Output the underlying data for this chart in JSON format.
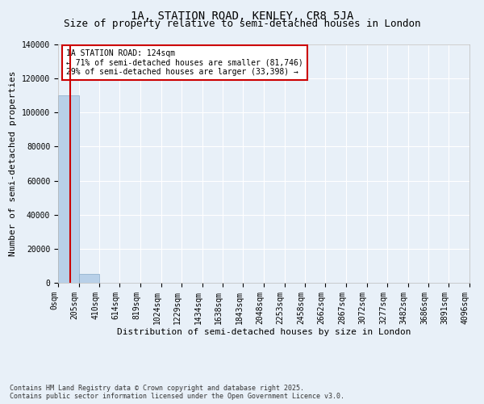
{
  "title": "1A, STATION ROAD, KENLEY, CR8 5JA",
  "subtitle": "Size of property relative to semi-detached houses in London",
  "xlabel": "Distribution of semi-detached houses by size in London",
  "ylabel": "Number of semi-detached properties",
  "property_size": 124,
  "property_label": "1A STATION ROAD: 124sqm",
  "pct_smaller": 71,
  "n_smaller": 81746,
  "pct_larger": 29,
  "n_larger": 33398,
  "bin_edges": [
    0,
    205,
    410,
    614,
    819,
    1024,
    1229,
    1434,
    1638,
    1843,
    2048,
    2253,
    2458,
    2662,
    2867,
    3072,
    3277,
    3482,
    3686,
    3891,
    4096
  ],
  "bin_labels": [
    "0sqm",
    "205sqm",
    "410sqm",
    "614sqm",
    "819sqm",
    "1024sqm",
    "1229sqm",
    "1434sqm",
    "1638sqm",
    "1843sqm",
    "2048sqm",
    "2253sqm",
    "2458sqm",
    "2662sqm",
    "2867sqm",
    "3072sqm",
    "3277sqm",
    "3482sqm",
    "3686sqm",
    "3891sqm",
    "4096sqm"
  ],
  "bar_heights": [
    110000,
    5200,
    0,
    0,
    0,
    0,
    0,
    0,
    0,
    0,
    0,
    0,
    0,
    0,
    0,
    0,
    0,
    0,
    0,
    0
  ],
  "bar_color": "#b8d0e8",
  "bar_edge_color": "#88aac8",
  "background_color": "#e8f0f8",
  "grid_color": "#ffffff",
  "vline_color": "#cc0000",
  "annotation_box_color": "#cc0000",
  "ylim": [
    0,
    140000
  ],
  "title_fontsize": 10,
  "subtitle_fontsize": 9,
  "axis_label_fontsize": 8,
  "tick_fontsize": 7,
  "footer_text": "Contains HM Land Registry data © Crown copyright and database right 2025.\nContains public sector information licensed under the Open Government Licence v3.0."
}
